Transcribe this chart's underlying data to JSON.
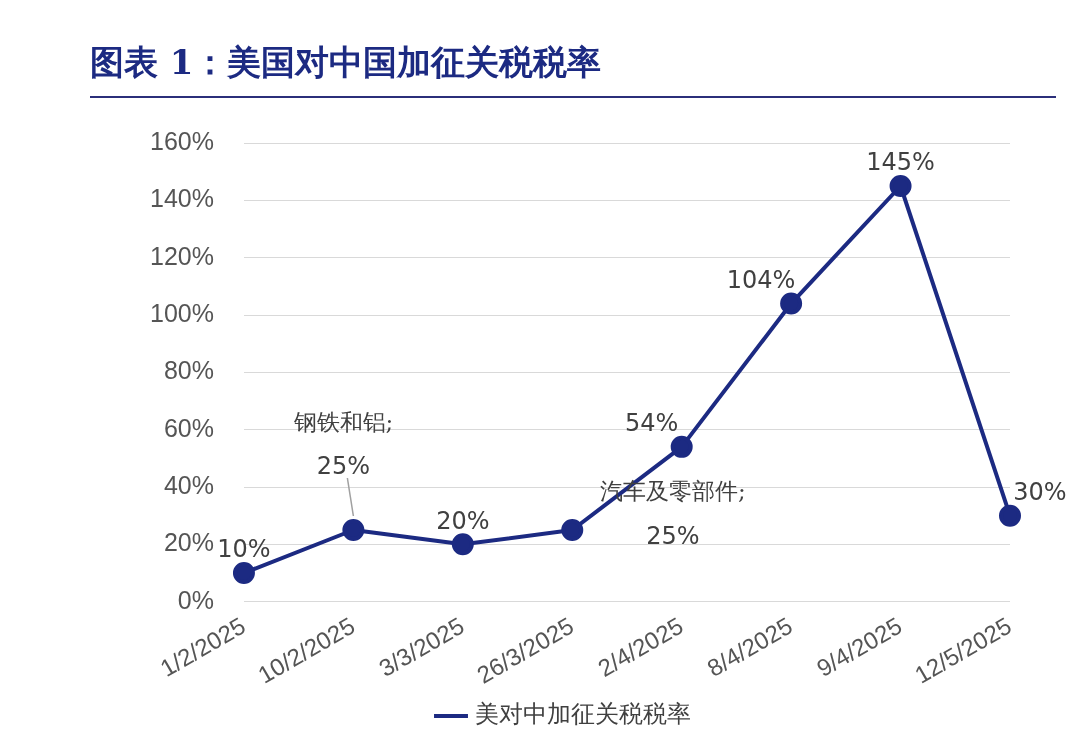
{
  "chart_data": {
    "type": "line",
    "title": "图表 1：美国对中国加征关税税率",
    "categories": [
      "1/2/2025",
      "10/2/2025",
      "3/3/2025",
      "26/3/2025",
      "2/4/2025",
      "8/4/2025",
      "9/4/2025",
      "12/5/2025"
    ],
    "series": [
      {
        "name": "美对中加征关税税率",
        "color": "#1c2a82",
        "values": [
          10,
          25,
          20,
          25,
          54,
          104,
          145,
          30
        ],
        "value_labels": [
          "10%",
          null,
          "20%",
          null,
          "54%",
          "104%",
          "145%",
          "30%"
        ]
      }
    ],
    "annotations": [
      {
        "text": "钢铁和铝;\n25%",
        "x": "10/2/2025",
        "y": 25
      },
      "汽车及零部件;\n25%"
    ],
    "ylim": [
      0,
      160
    ],
    "yticks": [
      {
        "value": 0,
        "label": "0%"
      },
      {
        "value": 20,
        "label": "20%"
      },
      {
        "value": 40,
        "label": "40%"
      },
      {
        "value": 60,
        "label": "60%"
      },
      {
        "value": 80,
        "label": "80%"
      },
      {
        "value": 100,
        "label": "100%"
      },
      {
        "value": 120,
        "label": "120%"
      },
      {
        "value": 140,
        "label": "140%"
      },
      {
        "value": 160,
        "label": "160%"
      }
    ],
    "grid": "y",
    "legend": "bottom",
    "marker": "circle",
    "line_style": "solid"
  }
}
